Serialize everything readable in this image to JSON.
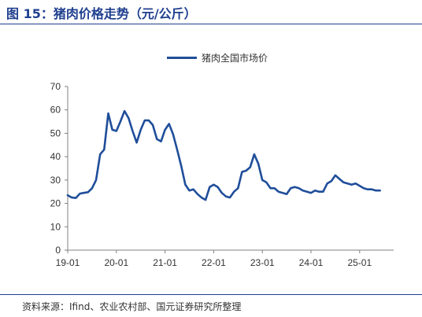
{
  "figure": {
    "title": "图 15：猪肉价格走势（元/公斤）",
    "source": "资料来源：Ifind、农业农村部、国元证券研究所整理"
  },
  "chart_data": {
    "type": "line",
    "title": "",
    "xlabel": "",
    "ylabel": "",
    "ylim": [
      0,
      70
    ],
    "yticks": [
      0,
      10,
      20,
      30,
      40,
      50,
      60,
      70
    ],
    "xticks": [
      "19-01",
      "20-01",
      "21-01",
      "22-01",
      "23-01",
      "24-01",
      "25-01"
    ],
    "grid": false,
    "legend_position": "top-center",
    "series": [
      {
        "name": "猪肉全国市场价",
        "color": "#1f4e9a",
        "x": [
          "2019-01",
          "2019-02",
          "2019-03",
          "2019-04",
          "2019-05",
          "2019-06",
          "2019-07",
          "2019-08",
          "2019-09",
          "2019-10",
          "2019-11",
          "2019-12",
          "2020-01",
          "2020-02",
          "2020-03",
          "2020-04",
          "2020-05",
          "2020-06",
          "2020-07",
          "2020-08",
          "2020-09",
          "2020-10",
          "2020-11",
          "2020-12",
          "2021-01",
          "2021-02",
          "2021-03",
          "2021-04",
          "2021-05",
          "2021-06",
          "2021-07",
          "2021-08",
          "2021-09",
          "2021-10",
          "2021-11",
          "2021-12",
          "2022-01",
          "2022-02",
          "2022-03",
          "2022-04",
          "2022-05",
          "2022-06",
          "2022-07",
          "2022-08",
          "2022-09",
          "2022-10",
          "2022-11",
          "2022-12",
          "2023-01",
          "2023-02",
          "2023-03",
          "2023-04",
          "2023-05",
          "2023-06",
          "2023-07",
          "2023-08",
          "2023-09",
          "2023-10",
          "2023-11",
          "2023-12",
          "2024-01",
          "2024-02",
          "2024-03",
          "2024-04",
          "2024-05",
          "2024-06",
          "2024-07",
          "2024-08",
          "2024-09",
          "2024-10",
          "2024-11",
          "2024-12",
          "2025-01",
          "2025-02",
          "2025-03",
          "2025-04",
          "2025-05",
          "2025-06"
        ],
        "values": [
          23.5,
          22.5,
          22.3,
          24.2,
          24.5,
          24.8,
          26.5,
          30.0,
          41.0,
          43.0,
          58.5,
          51.5,
          51.0,
          55.0,
          59.5,
          56.5,
          51.0,
          46.0,
          51.5,
          55.5,
          55.5,
          53.5,
          47.5,
          46.5,
          51.5,
          54.0,
          49.5,
          43.0,
          36.0,
          28.0,
          25.5,
          26.0,
          24.0,
          22.5,
          21.5,
          27.0,
          28.0,
          27.0,
          24.5,
          23.0,
          22.5,
          25.0,
          26.5,
          33.5,
          34.0,
          35.5,
          41.0,
          37.0,
          30.0,
          29.0,
          26.5,
          26.5,
          25.0,
          24.5,
          24.0,
          26.5,
          27.0,
          26.5,
          25.5,
          25.0,
          24.5,
          25.5,
          25.0,
          25.0,
          28.5,
          29.5,
          32.0,
          30.5,
          29.0,
          28.5,
          28.0,
          28.5,
          27.5,
          26.5,
          26.0,
          26.0,
          25.5,
          25.5
        ]
      }
    ]
  }
}
